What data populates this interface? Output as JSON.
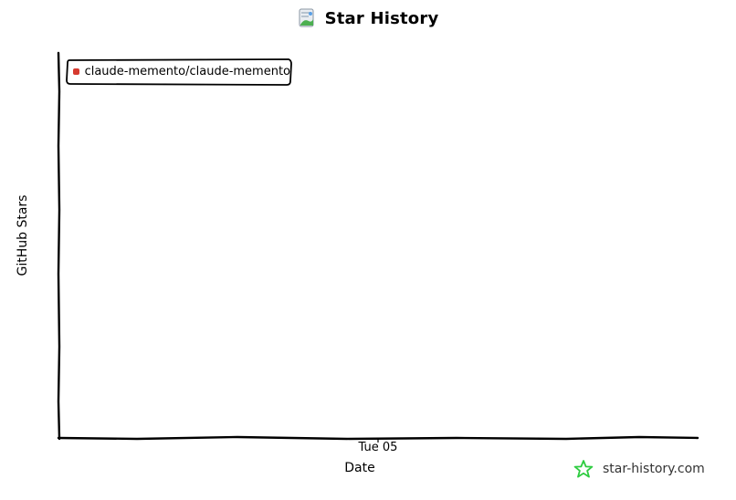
{
  "header": {
    "title": "Star History",
    "icon": "star-history-logo-icon"
  },
  "watermark": {
    "text": "star-history.com",
    "icon": "star-outline-icon",
    "color": "#2ecc40"
  },
  "chart_data": {
    "type": "line",
    "title": "Star History",
    "xlabel": "Date",
    "ylabel": "GitHub Stars",
    "x_ticks": [
      "Tue 05"
    ],
    "y_ticks": [],
    "legend_position": "top-left",
    "grid": false,
    "series": [
      {
        "name": "claude-memento/claude-memento",
        "color": "#d63a2f",
        "values": []
      }
    ]
  }
}
